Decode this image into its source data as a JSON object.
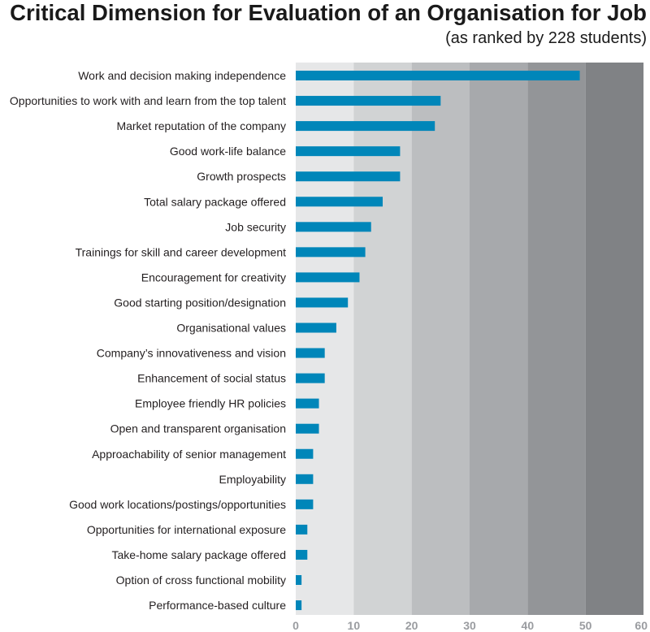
{
  "title": "Critical Dimension for Evaluation of an Organisation for Job",
  "subtitle": "(as ranked by 228 students)",
  "chart_data": {
    "type": "bar",
    "orientation": "horizontal",
    "title": "Critical Dimension for Evaluation of an Organisation for Job",
    "subtitle": "(as ranked by 228 students)",
    "xlabel": "",
    "ylabel": "",
    "xlim": [
      0,
      60
    ],
    "xticks": [
      0,
      10,
      20,
      30,
      40,
      50,
      60
    ],
    "grid": false,
    "bar_color": "#0086b9",
    "band_colors": [
      "#e6e7e8",
      "#d1d3d4",
      "#bcbec0",
      "#a7a9ac",
      "#939598",
      "#808285"
    ],
    "categories": [
      "Work and decision making independence",
      "Opportunities to work with and learn from the top talent",
      "Market reputation of the company",
      "Good work-life balance",
      "Growth prospects",
      "Total salary package offered",
      "Job security",
      "Trainings for skill and career development",
      "Encouragement for creativity",
      "Good starting position/designation",
      "Organisational values",
      "Company’s innovativeness and vision",
      "Enhancement of social status",
      "Employee friendly HR policies",
      "Open and transparent organisation",
      "Approachability of senior management",
      "Employability",
      "Good work locations/postings/opportunities",
      "Opportunities for international exposure",
      "Take-home salary package offered",
      "Option of cross functional mobility",
      "Performance-based culture"
    ],
    "values": [
      49,
      25,
      24,
      18,
      18,
      15,
      13,
      12,
      11,
      9,
      7,
      5,
      5,
      4,
      4,
      3,
      3,
      3,
      2,
      2,
      1,
      1
    ]
  }
}
